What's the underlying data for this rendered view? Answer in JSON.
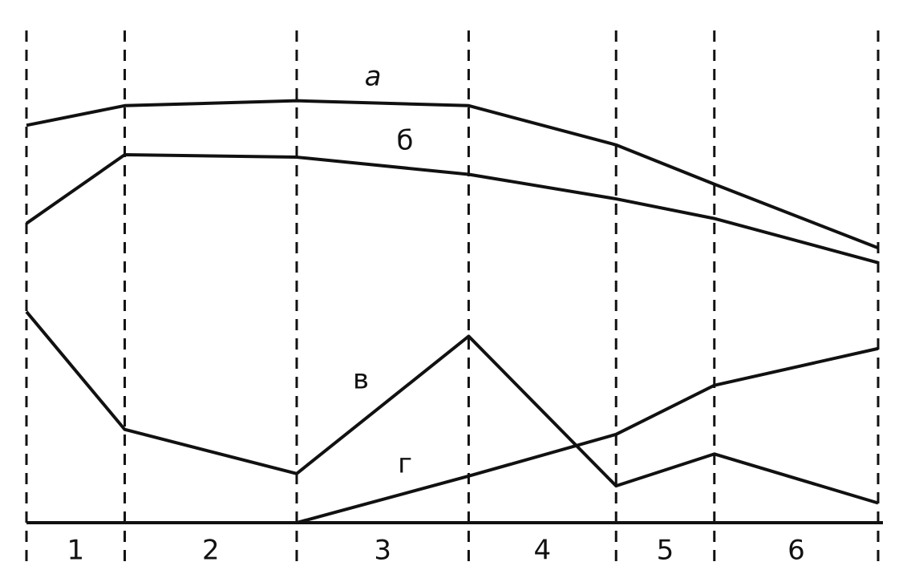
{
  "chart_data": {
    "type": "line",
    "x": [
      0,
      12,
      33,
      54,
      72,
      84,
      104
    ],
    "xlim": [
      0,
      104
    ],
    "ylim": [
      0,
      100
    ],
    "period_labels": [
      "1",
      "2",
      "3",
      "4",
      "5",
      "6"
    ],
    "series": [
      {
        "name": "а",
        "color": "#111111",
        "values": [
          81,
          85,
          86,
          85,
          77,
          69,
          56
        ]
      },
      {
        "name": "б",
        "color": "#111111",
        "values": [
          61,
          75,
          74.5,
          71,
          66,
          62,
          53
        ]
      },
      {
        "name": "в",
        "color": "#111111",
        "values": [
          43,
          19,
          10,
          38,
          7.5,
          14,
          4
        ]
      },
      {
        "name": "г",
        "color": "#111111",
        "values": [
          null,
          null,
          0,
          9.5,
          18,
          28,
          35.5
        ]
      }
    ]
  }
}
